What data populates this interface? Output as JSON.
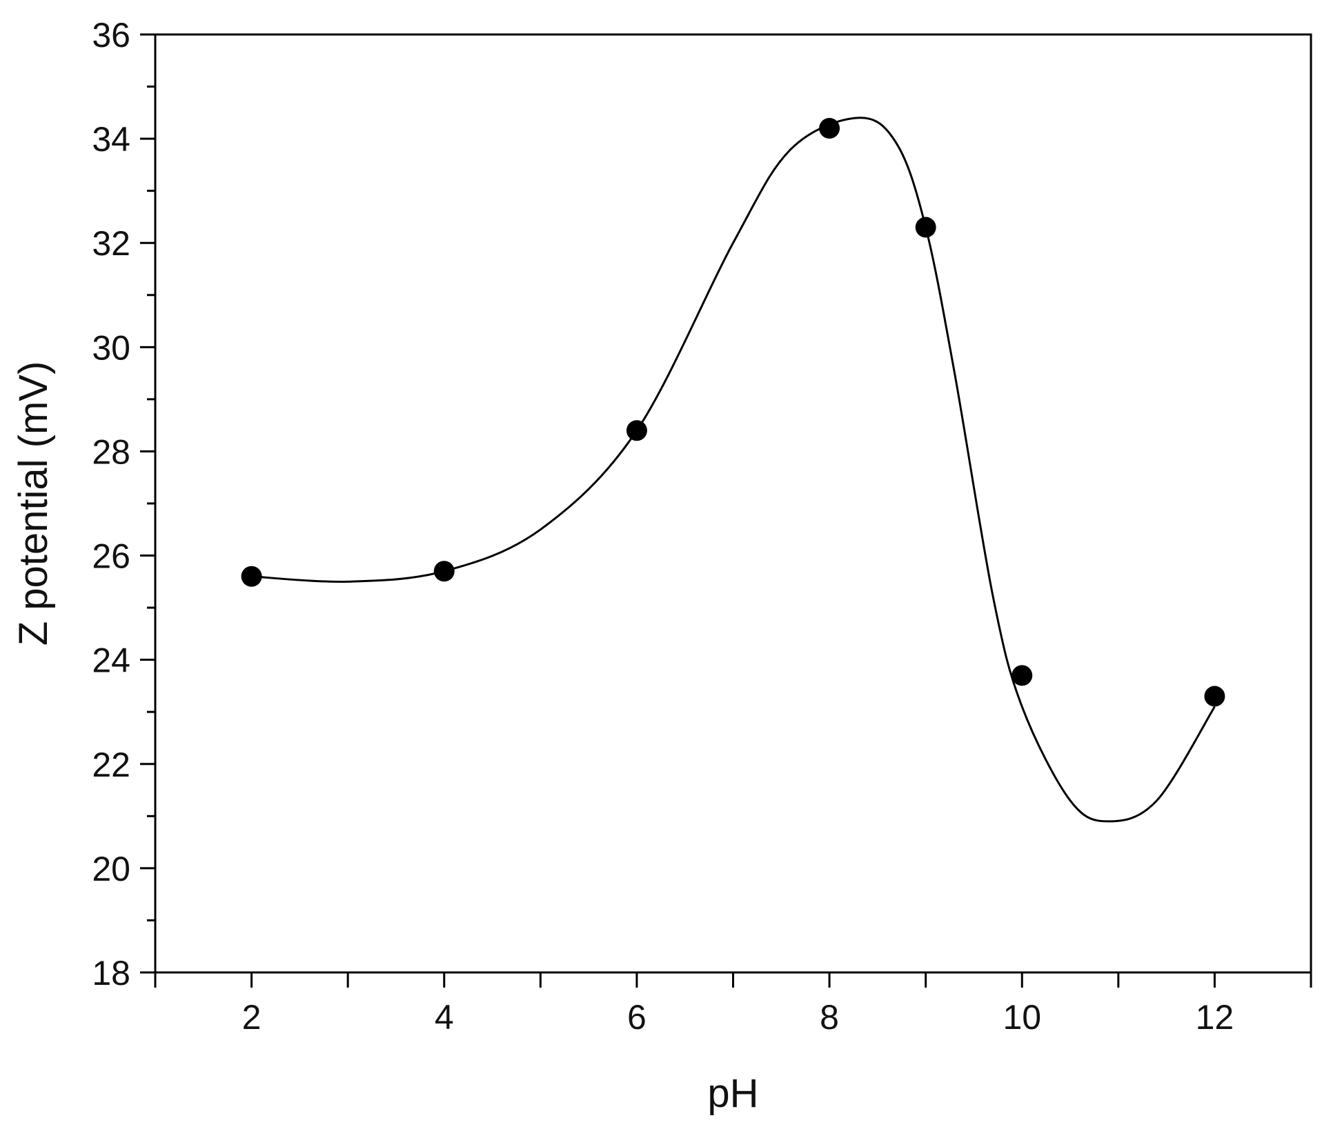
{
  "chart_data": {
    "type": "scatter",
    "xlabel": "pH",
    "ylabel": "Z potential (mV)",
    "xlim": [
      1,
      13
    ],
    "ylim": [
      18,
      36
    ],
    "xticks": [
      2,
      4,
      6,
      8,
      10,
      12
    ],
    "yticks": [
      18,
      20,
      22,
      24,
      26,
      28,
      30,
      32,
      34,
      36
    ],
    "grid": false,
    "legend": "none",
    "marker_color": "#000000",
    "line_color": "#000000",
    "series": [
      {
        "x": [
          2,
          4,
          6,
          8,
          9,
          10,
          12
        ],
        "y": [
          25.6,
          25.7,
          28.4,
          34.2,
          32.3,
          23.7,
          23.3
        ]
      }
    ],
    "curve_knots": [
      [
        2,
        25.6
      ],
      [
        3,
        25.5
      ],
      [
        4,
        25.7
      ],
      [
        5,
        26.5
      ],
      [
        6,
        28.4
      ],
      [
        7,
        32.0
      ],
      [
        7.6,
        33.8
      ],
      [
        8.3,
        34.4
      ],
      [
        8.7,
        33.9
      ],
      [
        9,
        32.3
      ],
      [
        9.3,
        29.5
      ],
      [
        9.7,
        25.2
      ],
      [
        10,
        23.1
      ],
      [
        10.5,
        21.3
      ],
      [
        10.9,
        20.9
      ],
      [
        11.4,
        21.3
      ],
      [
        12,
        23.1
      ]
    ]
  }
}
